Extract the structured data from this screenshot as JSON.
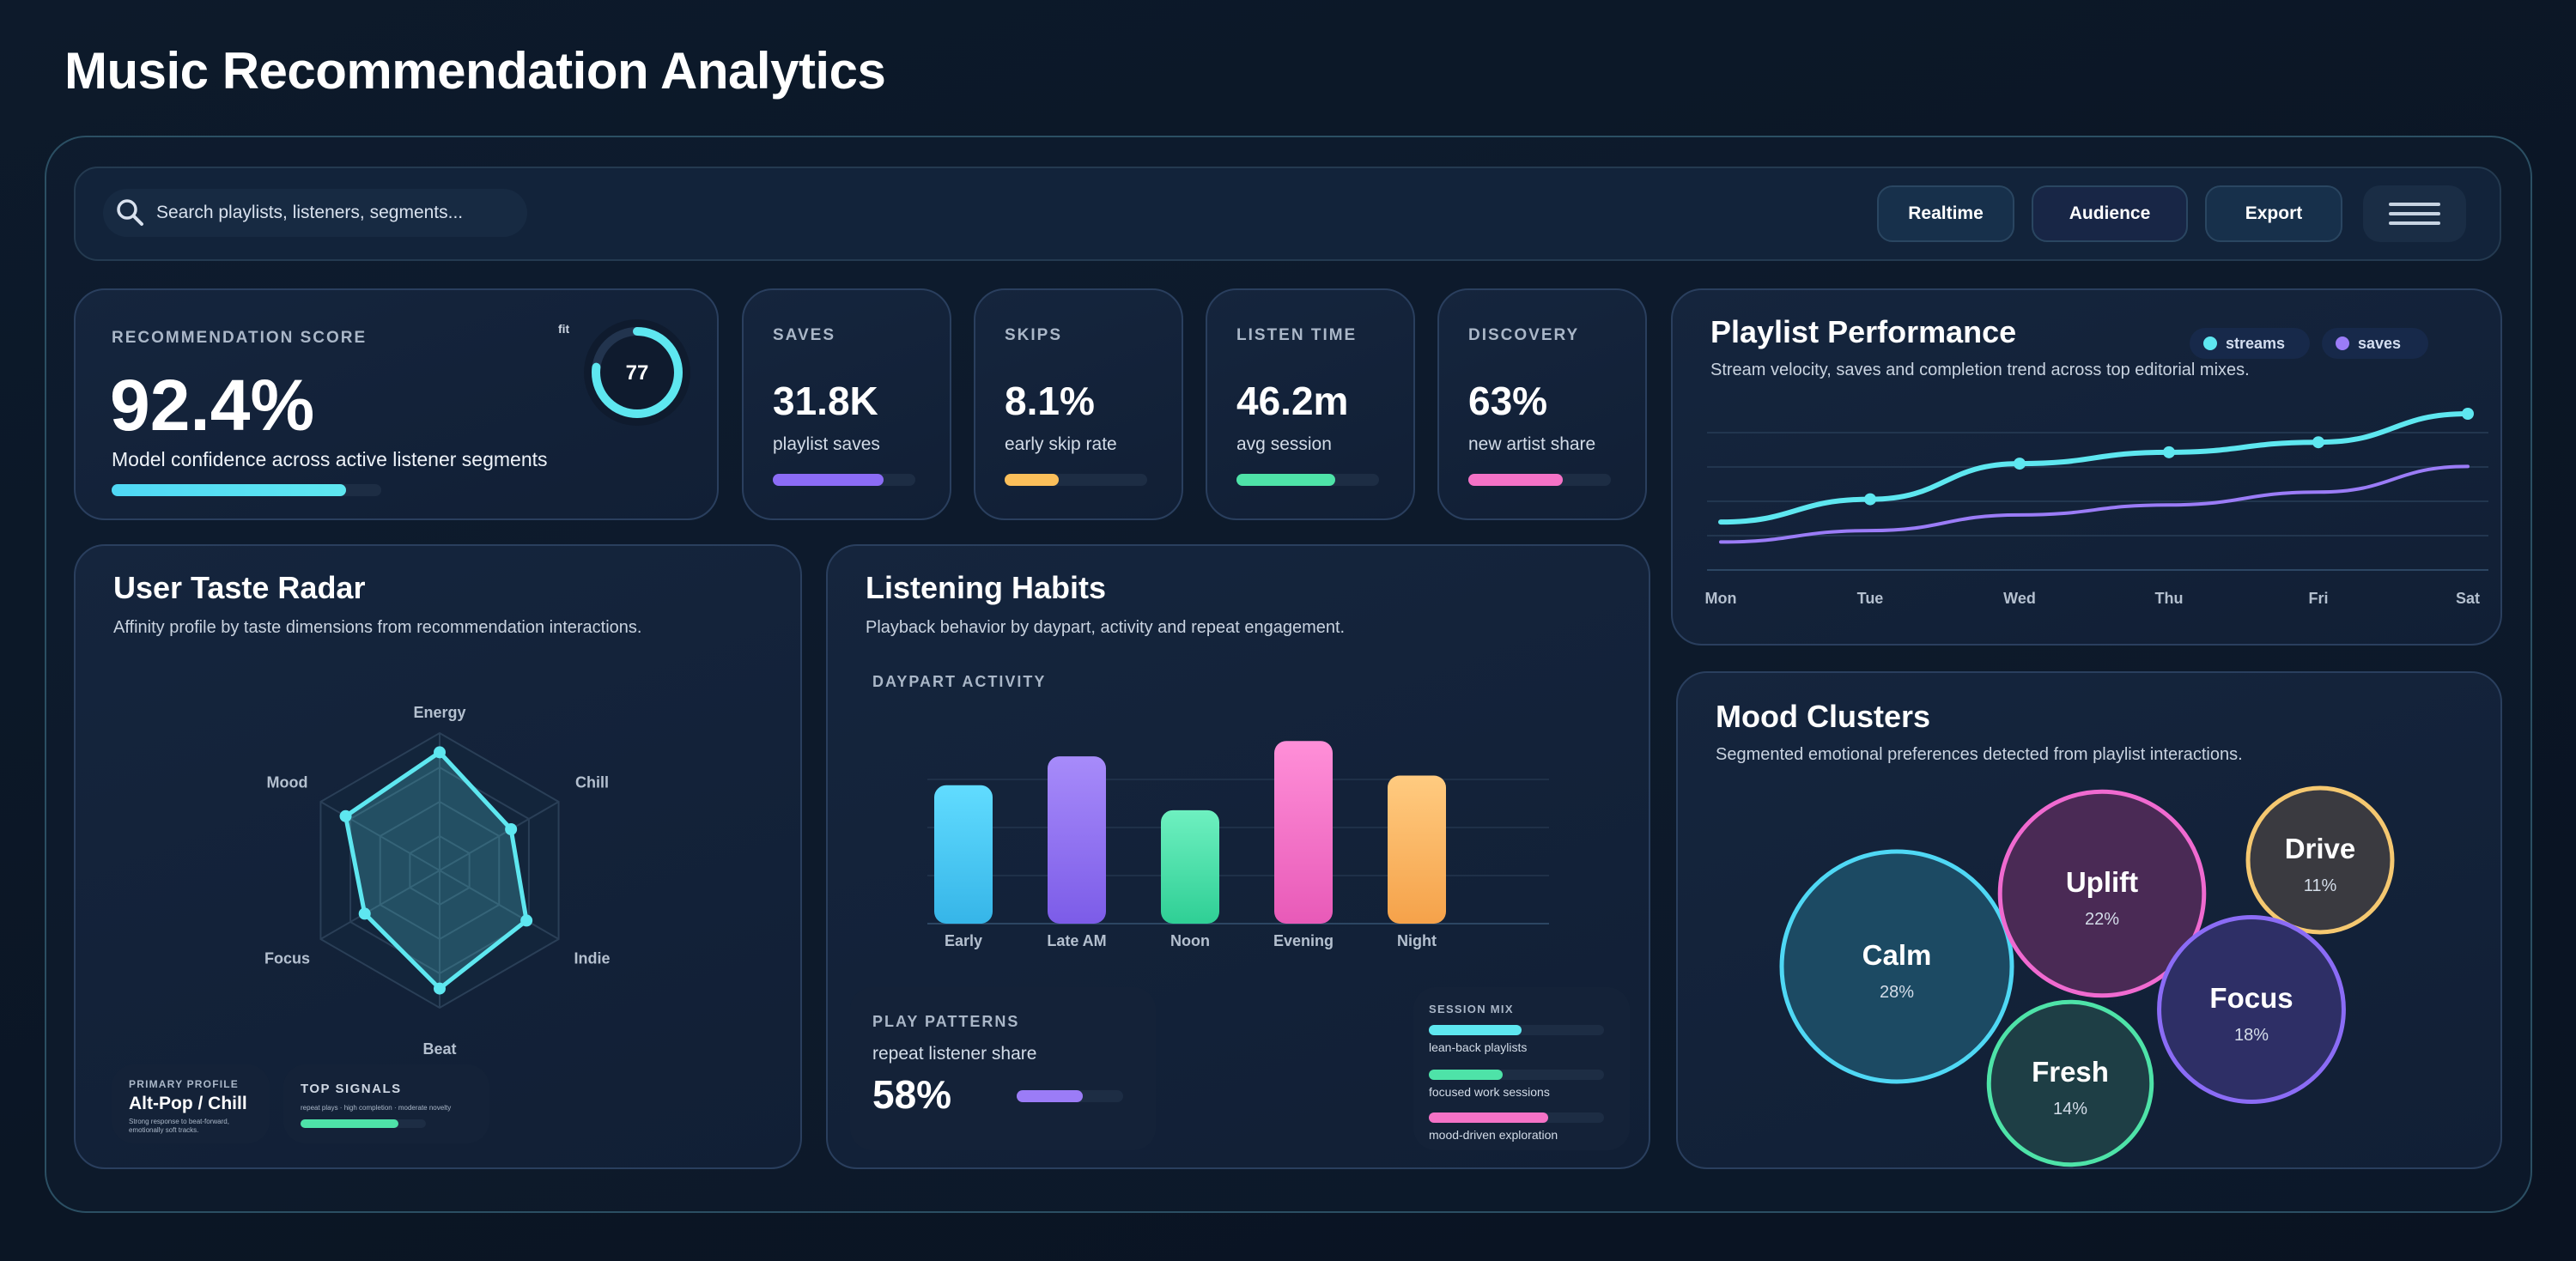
{
  "title": "Music Recommendation Analytics",
  "toolbar": {
    "search_placeholder": "Search playlists, listeners, segments...",
    "buttons": {
      "realtime": "Realtime",
      "audience": "Audience",
      "export": "Export"
    }
  },
  "score": {
    "label": "RECOMMENDATION SCORE",
    "value": "92.4%",
    "caption": "Model confidence across active listener segments",
    "progress": 0.87,
    "fit_label": "fit",
    "fit_value": "77",
    "fit_progress": 0.77,
    "color": "#5ee7f0"
  },
  "kpis": [
    {
      "label": "SAVES",
      "value": "31.8K",
      "caption": "playlist saves",
      "progress": 0.78,
      "color": "#8b6cf6"
    },
    {
      "label": "SKIPS",
      "value": "8.1%",
      "caption": "early skip rate",
      "progress": 0.38,
      "color": "#fbbf5a"
    },
    {
      "label": "LISTEN TIME",
      "value": "46.2m",
      "caption": "avg session",
      "progress": 0.69,
      "color": "#4ee3a8"
    },
    {
      "label": "DISCOVERY",
      "value": "63%",
      "caption": "new artist share",
      "progress": 0.66,
      "color": "#f472c6"
    }
  ],
  "playlist": {
    "title": "Playlist Performance",
    "desc": "Stream velocity, saves and completion trend across top editorial mixes.",
    "chart_data": {
      "type": "line",
      "x": [
        "Mon",
        "Tue",
        "Wed",
        "Thu",
        "Fri",
        "Sat"
      ],
      "ylim": [
        0,
        100
      ],
      "grid": true,
      "legend": "top-right",
      "series": [
        {
          "name": "streams",
          "color": "#5ee7f0",
          "values": [
            24,
            40,
            65,
            73,
            80,
            100
          ]
        },
        {
          "name": "saves",
          "color": "#9b7cf7",
          "values": [
            10,
            18,
            29,
            36,
            45,
            63
          ]
        }
      ]
    }
  },
  "radar": {
    "title": "User Taste Radar",
    "desc": "Affinity profile by taste dimensions from recommendation interactions.",
    "chart_data": {
      "type": "radar",
      "categories": [
        "Energy",
        "Chill",
        "Indie",
        "Beat",
        "Focus",
        "Mood"
      ],
      "values": [
        0.86,
        0.6,
        0.73,
        0.86,
        0.63,
        0.79
      ],
      "max": 1,
      "color": "#5ee7f0"
    },
    "primary": {
      "label": "PRIMARY PROFILE",
      "value": "Alt-Pop / Chill",
      "note": "Strong response to beat-forward, emotionally soft tracks."
    },
    "signals": {
      "label": "TOP SIGNALS",
      "note": "repeat plays · high completion · moderate novelty",
      "progress": 0.78
    }
  },
  "habits": {
    "title": "Listening Habits",
    "desc": "Playback behavior by daypart, activity and repeat engagement.",
    "daypart_label": "DAYPART ACTIVITY",
    "chart_data": {
      "type": "bar",
      "categories": [
        "Early",
        "Late AM",
        "Noon",
        "Evening",
        "Night"
      ],
      "values": [
        72,
        87,
        59,
        95,
        77
      ],
      "ylim": [
        0,
        100
      ],
      "grid": true,
      "colors": [
        [
          "#61dcff",
          "#36b5e8"
        ],
        [
          "#a78bfa",
          "#7c5ce8"
        ],
        [
          "#6ef0c0",
          "#2fcf95"
        ],
        [
          "#ff8fd8",
          "#e85ab8"
        ],
        [
          "#ffcb80",
          "#f5a24a"
        ]
      ]
    },
    "play_patterns": {
      "label": "PLAY PATTERNS",
      "caption": "repeat listener share",
      "value": "58%",
      "progress": 0.62
    },
    "session_mix": {
      "label": "SESSION MIX",
      "items": [
        {
          "label": "lean-back playlists",
          "progress": 0.53,
          "color": "#5ee7f0"
        },
        {
          "label": "focused work sessions",
          "progress": 0.42,
          "color": "#4ee3a8"
        },
        {
          "label": "mood-driven exploration",
          "progress": 0.68,
          "color": "#f472c6"
        }
      ]
    }
  },
  "mood": {
    "title": "Mood Clusters",
    "desc": "Segmented emotional preferences detected from playlist interactions.",
    "chart_data": {
      "type": "bubble",
      "clusters": [
        {
          "name": "Calm",
          "pct": "28%",
          "value": 28,
          "stroke": "#4fd8f5",
          "fill": "#1c4a63"
        },
        {
          "name": "Uplift",
          "pct": "22%",
          "value": 22,
          "stroke": "#f06ad0",
          "fill": "#4a2a55"
        },
        {
          "name": "Drive",
          "pct": "11%",
          "value": 11,
          "stroke": "#f5c870",
          "fill": "#3a3a40"
        },
        {
          "name": "Focus",
          "pct": "18%",
          "value": 18,
          "stroke": "#8b6cf6",
          "fill": "#2e2f66"
        },
        {
          "name": "Fresh",
          "pct": "14%",
          "value": 14,
          "stroke": "#4ee3a8",
          "fill": "#1e3e45"
        }
      ]
    }
  }
}
